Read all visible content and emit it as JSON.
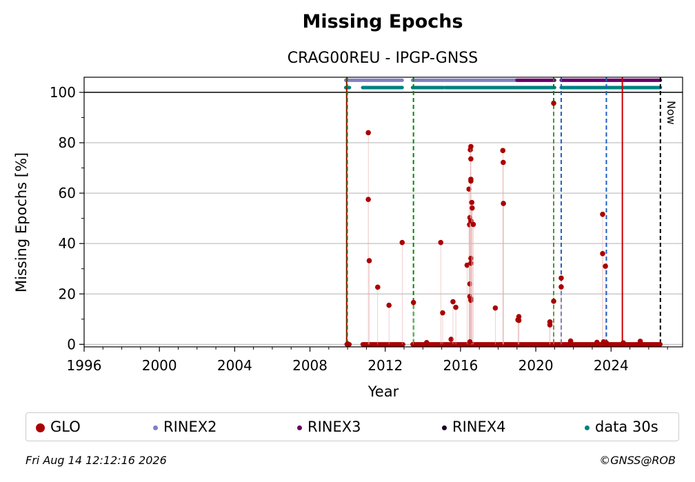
{
  "chart_data": {
    "type": "scatter",
    "title": "Missing Epochs",
    "subtitle": "CRAG00REU - IPGP-GNSS",
    "xlabel": "Year",
    "ylabel": "Missing Epochs [%]",
    "xlim": [
      1996,
      2027.8
    ],
    "ylim": [
      -1,
      106
    ],
    "x_ticks": [
      1996,
      2000,
      2004,
      2008,
      2012,
      2016,
      2020,
      2024
    ],
    "y_ticks": [
      0,
      20,
      40,
      60,
      80,
      100
    ],
    "grid": "horizontal",
    "now_label": "Now",
    "now_year": 2026.62,
    "reference_lines": [
      {
        "x": 2009.95,
        "style": "solid",
        "color": "#aa0000"
      },
      {
        "x": 2009.98,
        "style": "dashed",
        "color": "#008800"
      },
      {
        "x": 2013.5,
        "style": "dashed",
        "color": "#008800"
      },
      {
        "x": 2020.95,
        "style": "dashed",
        "color": "#008800"
      },
      {
        "x": 2021.35,
        "style": "dashed",
        "color": "#1f5fbf"
      },
      {
        "x": 2023.75,
        "style": "dashed",
        "color": "#1f5fbf"
      },
      {
        "x": 2024.6,
        "style": "solid",
        "color": "#cc0000"
      },
      {
        "x": 2026.62,
        "style": "dashed",
        "color": "#000000"
      }
    ],
    "availability_bars": [
      {
        "name": "RINEX2",
        "y": 104.8,
        "color": "#8080c0",
        "segments": [
          [
            2009.9,
            2012.9
          ],
          [
            2013.45,
            2019.0
          ]
        ]
      },
      {
        "name": "RINEX3",
        "y": 104.8,
        "color": "#660066",
        "segments": [
          [
            2019.0,
            2021.0
          ],
          [
            2021.35,
            2026.62
          ]
        ]
      },
      {
        "name": "data 30s",
        "y": 101.9,
        "color": "#008080",
        "segments": [
          [
            2009.9,
            2010.1
          ],
          [
            2010.8,
            2012.9
          ],
          [
            2013.45,
            2015.1
          ],
          [
            2015.2,
            2021.0
          ],
          [
            2021.35,
            2026.62
          ]
        ]
      }
    ],
    "series": [
      {
        "name": "GLO",
        "color": "#aa0000",
        "points": [
          [
            2010.0,
            0.2
          ],
          [
            2011.1,
            84
          ],
          [
            2011.1,
            57.5
          ],
          [
            2011.15,
            33.2
          ],
          [
            2011.6,
            22.7
          ],
          [
            2012.2,
            15.5
          ],
          [
            2012.9,
            40.4
          ],
          [
            2013.5,
            16.6
          ],
          [
            2014.2,
            0.7
          ],
          [
            2014.95,
            40.4
          ],
          [
            2015.05,
            12.5
          ],
          [
            2015.5,
            2.0
          ],
          [
            2015.6,
            16.9
          ],
          [
            2015.75,
            14.7
          ],
          [
            2016.35,
            31.4
          ],
          [
            2016.45,
            61.6
          ],
          [
            2016.48,
            47.5
          ],
          [
            2016.5,
            50.3
          ],
          [
            2016.5,
            24.0
          ],
          [
            2016.5,
            19.0
          ],
          [
            2016.52,
            77.2
          ],
          [
            2016.55,
            78.5
          ],
          [
            2016.55,
            73.6
          ],
          [
            2016.55,
            65.5
          ],
          [
            2016.55,
            64.8
          ],
          [
            2016.55,
            49.0
          ],
          [
            2016.55,
            34.1
          ],
          [
            2016.55,
            32.2
          ],
          [
            2016.55,
            18.0
          ],
          [
            2016.55,
            17.5
          ],
          [
            2016.6,
            56.3
          ],
          [
            2016.62,
            54.1
          ],
          [
            2016.68,
            47.6
          ],
          [
            2016.5,
            1.0
          ],
          [
            2017.85,
            14.4
          ],
          [
            2018.25,
            76.9
          ],
          [
            2018.27,
            72.2
          ],
          [
            2018.28,
            55.9
          ],
          [
            2019.05,
            9.7
          ],
          [
            2019.1,
            11.0
          ],
          [
            2019.1,
            9.5
          ],
          [
            2020.75,
            8.9
          ],
          [
            2020.75,
            7.7
          ],
          [
            2020.95,
            95.7
          ],
          [
            2020.95,
            17.1
          ],
          [
            2021.35,
            26.3
          ],
          [
            2021.35,
            22.8
          ],
          [
            2021.85,
            1.3
          ],
          [
            2023.25,
            0.8
          ],
          [
            2023.55,
            51.6
          ],
          [
            2023.55,
            36.0
          ],
          [
            2023.6,
            1.0
          ],
          [
            2023.7,
            31.0
          ],
          [
            2023.75,
            0.6
          ],
          [
            2024.65,
            0.6
          ],
          [
            2025.55,
            1.2
          ]
        ],
        "zero_baseline_segments": [
          [
            2009.95,
            2010.1
          ],
          [
            2010.8,
            2012.95
          ],
          [
            2013.45,
            2026.62
          ]
        ]
      }
    ],
    "legend": {
      "position": "bottom",
      "entries": [
        {
          "label": "GLO",
          "color": "#aa0000",
          "size": "large"
        },
        {
          "label": "RINEX2",
          "color": "#8080c0",
          "size": "small"
        },
        {
          "label": "RINEX3",
          "color": "#660066",
          "size": "small"
        },
        {
          "label": "RINEX4",
          "color": "#1a0026",
          "size": "small"
        },
        {
          "label": "data 30s",
          "color": "#008080",
          "size": "small"
        }
      ]
    }
  },
  "footer": {
    "timestamp": "Fri Aug 14 12:12:16 2026",
    "copyright": "©GNSS@ROB"
  }
}
